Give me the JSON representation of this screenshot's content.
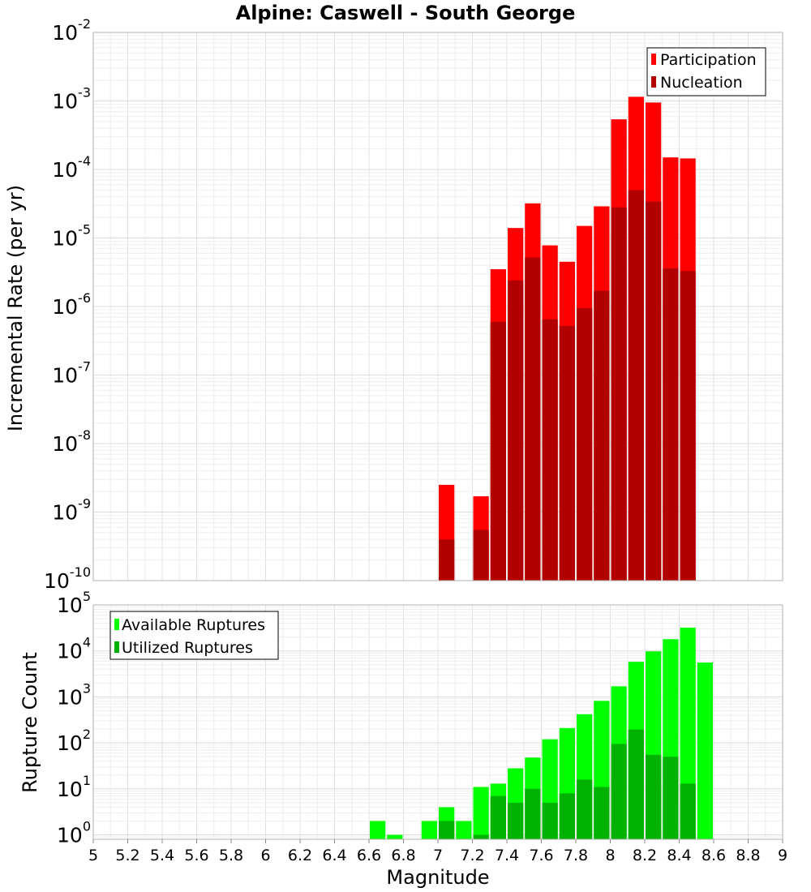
{
  "chart_data": [
    {
      "type": "bar",
      "title": "Alpine: Caswell - South George",
      "xlabel": "",
      "ylabel": "Incremental Rate (per yr)",
      "xlim": [
        5,
        9
      ],
      "ylim": [
        1e-10,
        0.01
      ],
      "yscale": "log",
      "bin_width": 0.1,
      "grid": true,
      "legend_position": "top-right",
      "y_ticks": [
        {
          "base": "10",
          "exp": "-10",
          "value": 1e-10
        },
        {
          "base": "10",
          "exp": "-9",
          "value": 1e-09
        },
        {
          "base": "10",
          "exp": "-8",
          "value": 1e-08
        },
        {
          "base": "10",
          "exp": "-7",
          "value": 1e-07
        },
        {
          "base": "10",
          "exp": "-6",
          "value": 1e-06
        },
        {
          "base": "10",
          "exp": "-5",
          "value": 1e-05
        },
        {
          "base": "10",
          "exp": "-4",
          "value": 0.0001
        },
        {
          "base": "10",
          "exp": "-3",
          "value": 0.001
        },
        {
          "base": "10",
          "exp": "-2",
          "value": 0.01
        }
      ],
      "x": [
        7.05,
        7.25,
        7.35,
        7.45,
        7.55,
        7.65,
        7.75,
        7.85,
        7.95,
        8.05,
        8.15,
        8.25,
        8.35,
        8.45
      ],
      "series": [
        {
          "name": "Participation",
          "color": "#ff0000",
          "values": [
            2.5e-09,
            1.7e-09,
            3.5e-06,
            1.4e-05,
            3.2e-05,
            7.8e-06,
            4.5e-06,
            1.5e-05,
            2.9e-05,
            0.00054,
            0.00115,
            0.00095,
            0.00015,
            0.000145
          ]
        },
        {
          "name": "Nucleation",
          "color": "#b20000",
          "values": [
            4e-10,
            5.5e-10,
            6e-07,
            2.4e-06,
            5.2e-06,
            6.5e-07,
            5.2e-07,
            9.5e-07,
            1.7e-06,
            2.8e-05,
            5e-05,
            3.4e-05,
            3.6e-06,
            3.3e-06
          ]
        }
      ]
    },
    {
      "type": "bar",
      "title": "",
      "xlabel": "Magnitude",
      "ylabel": "Rupture Count",
      "xlim": [
        5,
        9
      ],
      "ylim": [
        0.8,
        100000.0
      ],
      "yscale": "log",
      "bin_width": 0.1,
      "grid": true,
      "legend_position": "top-left",
      "y_ticks": [
        {
          "base": "10",
          "exp": "0",
          "value": 1
        },
        {
          "base": "10",
          "exp": "1",
          "value": 10
        },
        {
          "base": "10",
          "exp": "2",
          "value": 100
        },
        {
          "base": "10",
          "exp": "3",
          "value": 1000
        },
        {
          "base": "10",
          "exp": "4",
          "value": 10000
        },
        {
          "base": "10",
          "exp": "5",
          "value": 100000
        }
      ],
      "x_ticks": [
        "5",
        "5.2",
        "5.4",
        "5.6",
        "5.8",
        "6",
        "6.2",
        "6.4",
        "6.6",
        "6.8",
        "7",
        "7.2",
        "7.4",
        "7.6",
        "7.8",
        "8",
        "8.2",
        "8.4",
        "8.6",
        "8.8",
        "9"
      ],
      "x": [
        6.65,
        6.75,
        6.95,
        7.05,
        7.15,
        7.25,
        7.35,
        7.45,
        7.55,
        7.65,
        7.75,
        7.85,
        7.95,
        8.05,
        8.15,
        8.25,
        8.35,
        8.45,
        8.55
      ],
      "series": [
        {
          "name": "Available Ruptures",
          "color": "#00ff00",
          "values": [
            2,
            1,
            2,
            4,
            2,
            11,
            13,
            28,
            48,
            120,
            210,
            420,
            820,
            1700,
            5800,
            9800,
            18000,
            32000,
            5600
          ]
        },
        {
          "name": "Utilized Ruptures",
          "color": "#00b200",
          "values": [
            0,
            0,
            0,
            2,
            0,
            1,
            7,
            5,
            10,
            5,
            8,
            16,
            11,
            95,
            195,
            55,
            50,
            13,
            0
          ]
        }
      ]
    }
  ]
}
